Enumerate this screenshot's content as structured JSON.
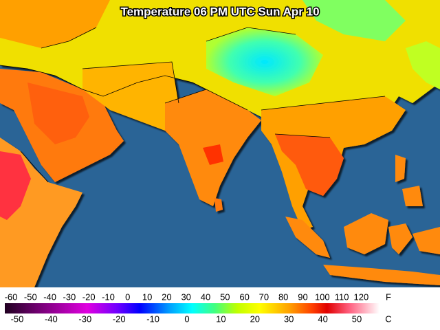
{
  "map": {
    "title": "Temperature 06 PM UTC Sun Apr 10",
    "legend": {
      "fahrenheit_unit": "F",
      "fahrenheit_labels": [
        -60,
        -50,
        -40,
        -30,
        -20,
        -10,
        0,
        10,
        20,
        30,
        40,
        50,
        60,
        70,
        80,
        90,
        100,
        110,
        120
      ],
      "celsius_unit": "C",
      "celsius_labels": [
        -50,
        -40,
        -30,
        -20,
        -10,
        0,
        10,
        20,
        30,
        40,
        50
      ]
    }
  }
}
